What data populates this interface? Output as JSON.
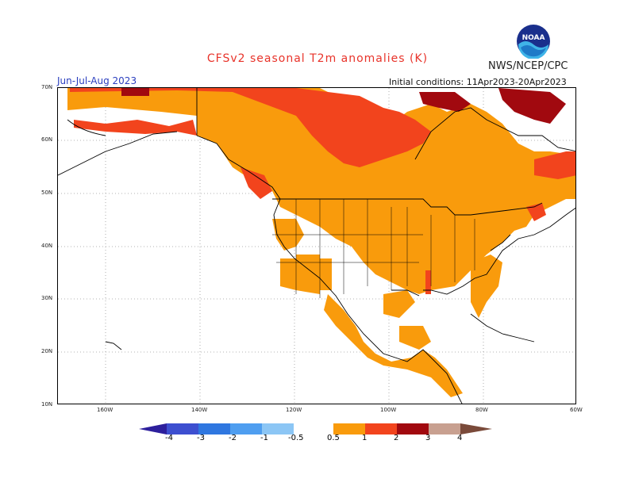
{
  "header": {
    "title": "CFSv2 seasonal T2m anomalies (K)",
    "agency": "NWS/NCEP/CPC",
    "period": "Jun-Jul-Aug 2023",
    "initial_conditions": "Initial conditions: 11Apr2023-20Apr2023",
    "logo_text": "NOAA"
  },
  "axes": {
    "lat_labels": [
      "70N",
      "60N",
      "50N",
      "40N",
      "30N",
      "20N",
      "10N"
    ],
    "lon_labels": [
      "160W",
      "140W",
      "120W",
      "100W",
      "80W",
      "60W"
    ]
  },
  "legend": {
    "ticks": [
      "-4",
      "-3",
      "-2",
      "-1",
      "-0.5",
      "0.5",
      "1",
      "2",
      "3",
      "4"
    ],
    "colors": [
      "#2d1f9c",
      "#3d4fd0",
      "#2f77e0",
      "#4f9ef0",
      "#8cc6f5",
      "#ffffff",
      "#f99b0c",
      "#f2441d",
      "#a1090f",
      "#c8a090",
      "#7a4a3a"
    ]
  },
  "colors": {
    "anomaly_0_5_to_1": "#f99b0c",
    "anomaly_1_to_2": "#f2441d",
    "anomaly_2_to_3": "#a1090f",
    "title_color": "#e8332a",
    "period_color": "#2b3fbf"
  }
}
